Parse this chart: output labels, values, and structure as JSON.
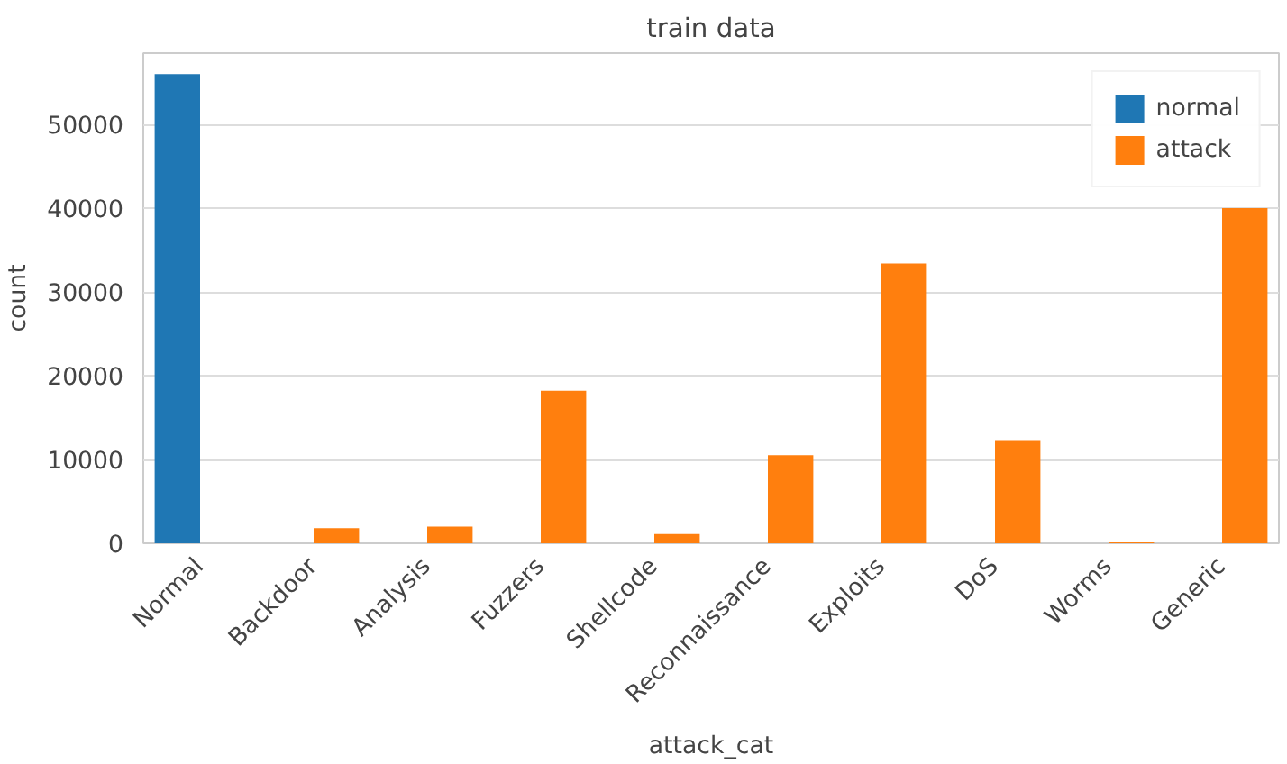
{
  "chart_data": {
    "type": "bar",
    "title": "train data",
    "xlabel": "attack_cat",
    "ylabel": "count",
    "categories": [
      "Normal",
      "Backdoor",
      "Analysis",
      "Fuzzers",
      "Shellcode",
      "Reconnaissance",
      "Exploits",
      "DoS",
      "Worms",
      "Generic"
    ],
    "series": [
      {
        "name": "normal",
        "color": "#1f77b4",
        "values": [
          56000,
          null,
          null,
          null,
          null,
          null,
          null,
          null,
          null,
          null
        ]
      },
      {
        "name": "attack",
        "color": "#ff7f0e",
        "values": [
          null,
          1800,
          2000,
          18200,
          1100,
          10500,
          33400,
          12300,
          100,
          40000
        ]
      }
    ],
    "ylim": [
      0,
      58500
    ],
    "yticks": [
      0,
      10000,
      20000,
      30000,
      40000,
      50000
    ],
    "grid": "y",
    "legend": "top right"
  }
}
